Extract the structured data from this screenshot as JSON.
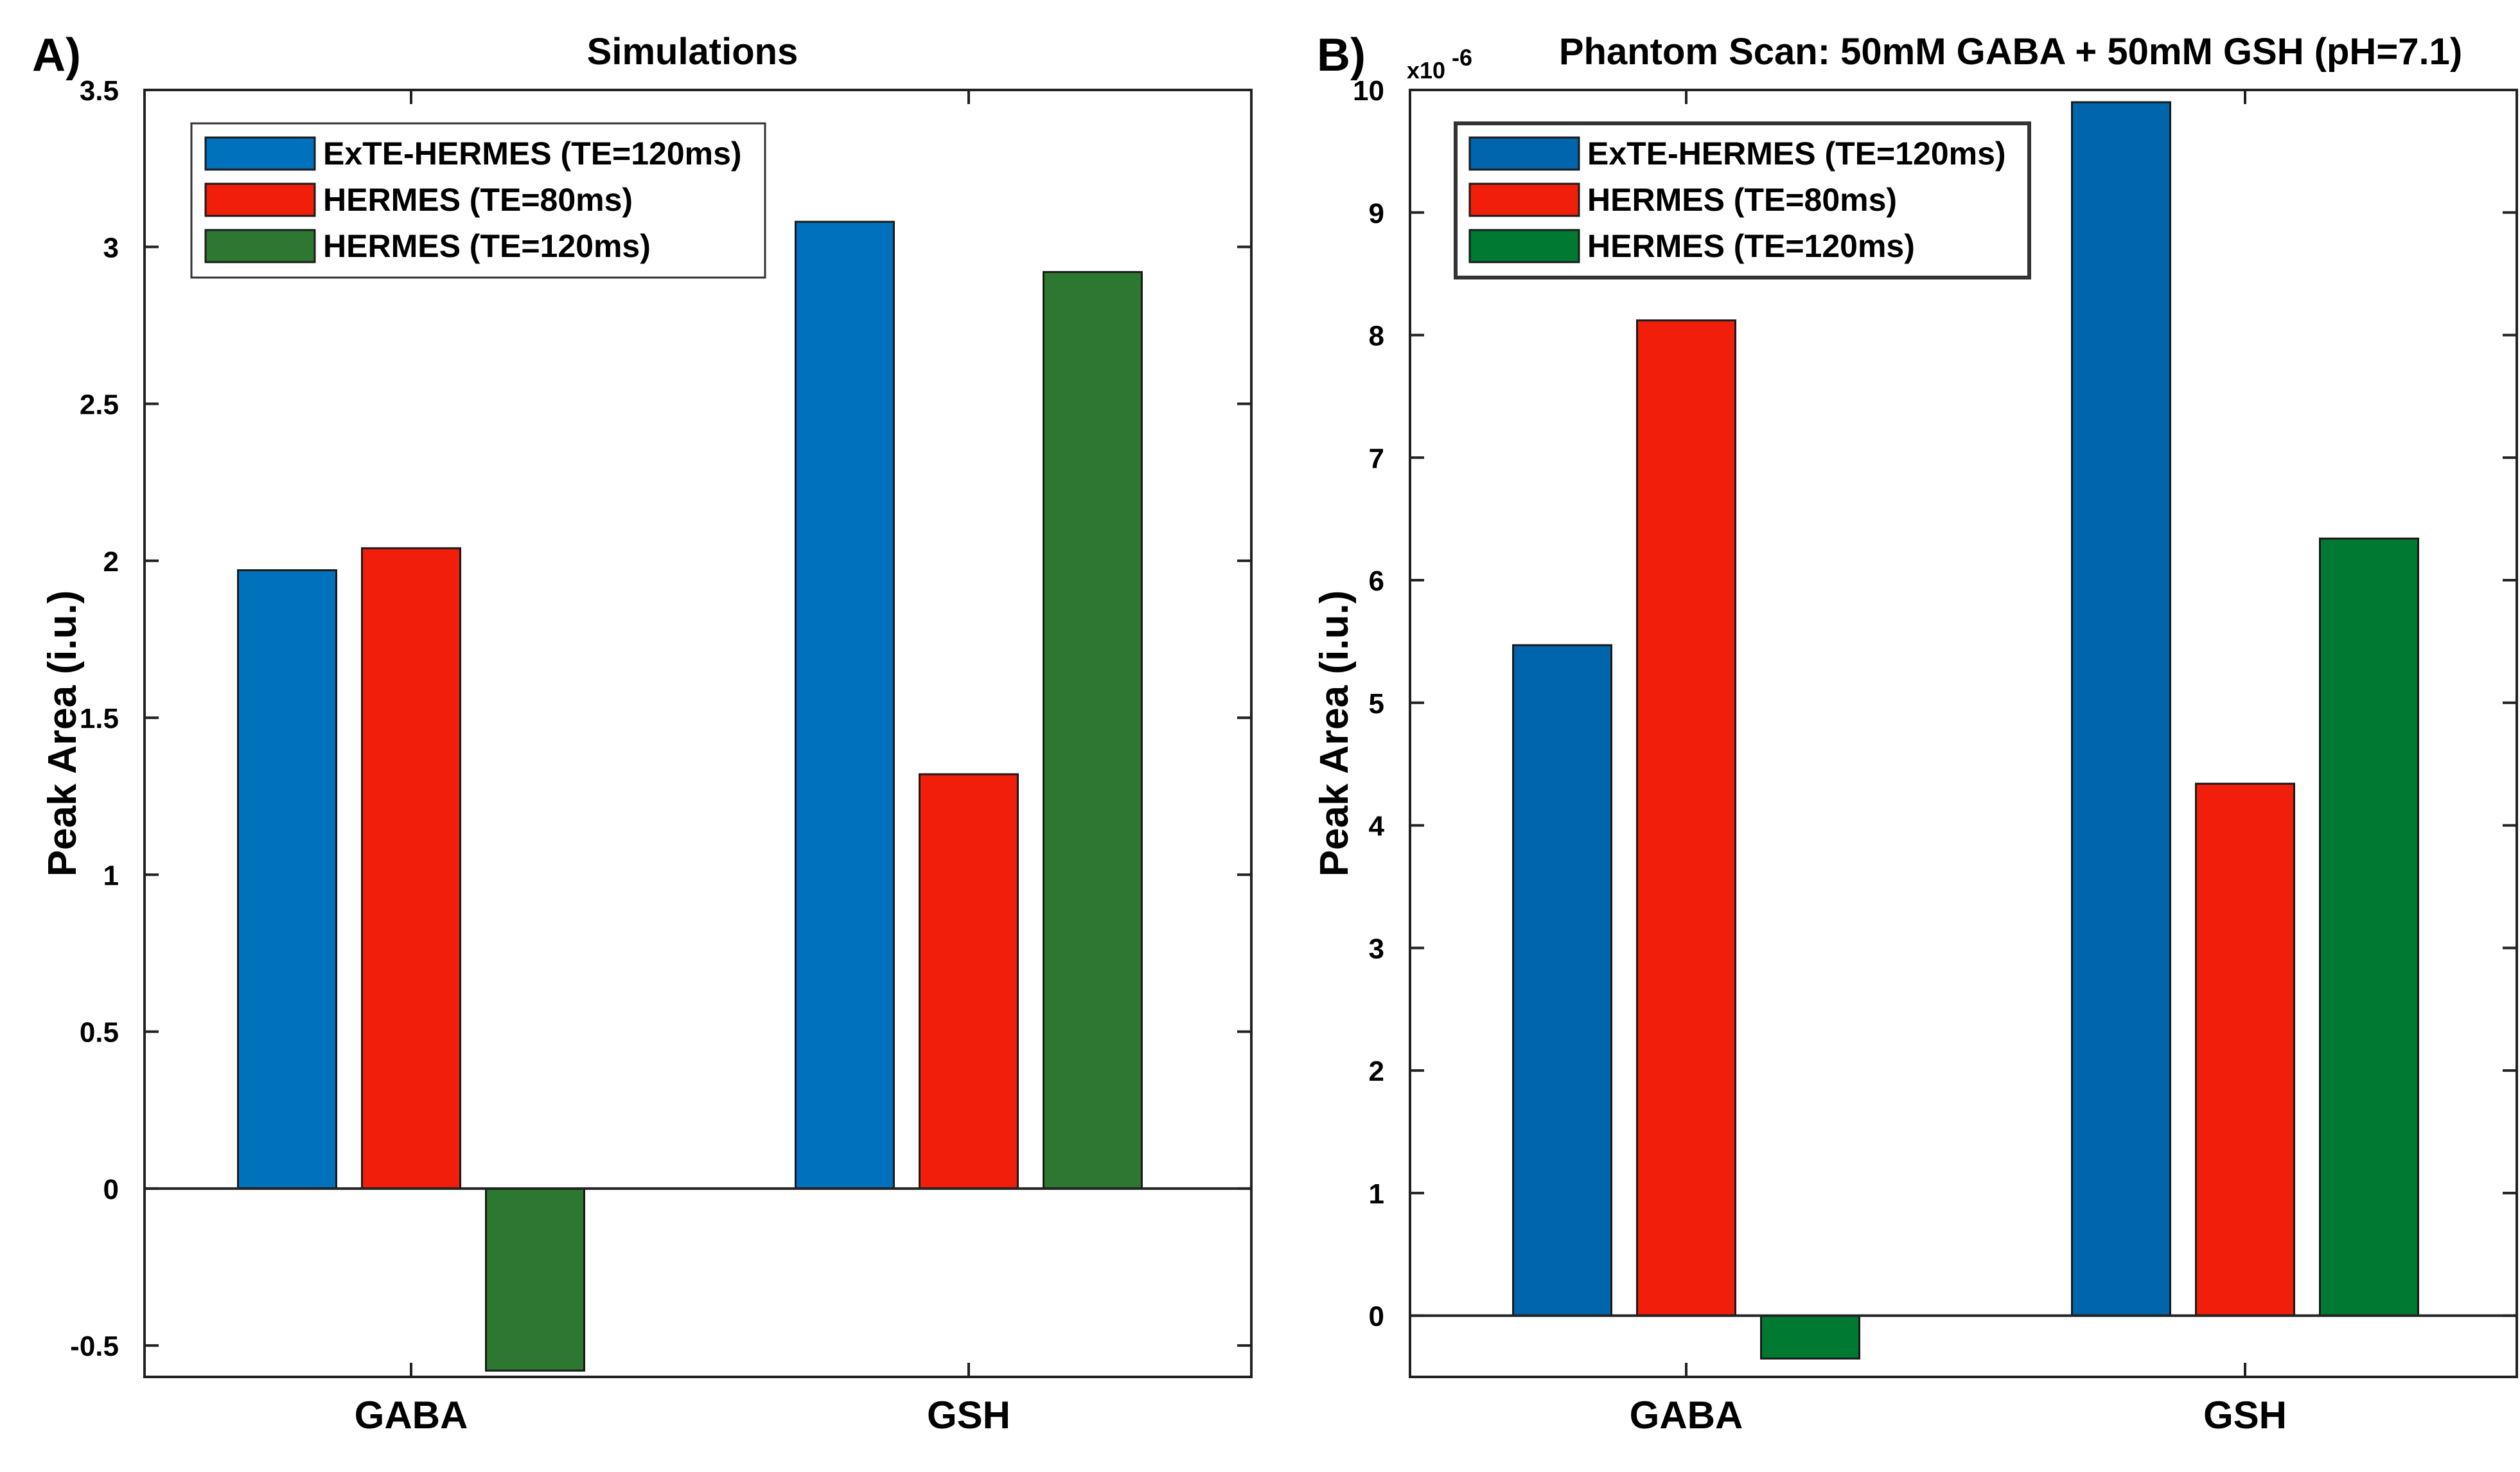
{
  "chart_data": [
    {
      "type": "bar",
      "panel_label": "A)",
      "title": "Simulations",
      "xlabel": "",
      "ylabel": "Peak Area (i.u.)",
      "categories": [
        "GABA",
        "GSH"
      ],
      "ylim": [
        -0.6,
        3.5
      ],
      "yticks": [
        "-0.5",
        "0",
        "0.5",
        "1",
        "1.5",
        "2",
        "2.5",
        "3",
        "3.5"
      ],
      "ytick_values": [
        -0.5,
        0,
        0.5,
        1,
        1.5,
        2,
        2.5,
        3,
        3.5
      ],
      "legend_position": "top-left",
      "grid": false,
      "series": [
        {
          "name": "ExTE-HERMES (TE=120ms)",
          "color": "#0072bd",
          "values": [
            1.97,
            3.08
          ]
        },
        {
          "name": "HERMES (TE=80ms)",
          "color": "#f01e0a",
          "values": [
            2.04,
            1.32
          ]
        },
        {
          "name": "HERMES (TE=120ms)",
          "color": "#2d7830",
          "values": [
            -0.58,
            2.92
          ]
        }
      ]
    },
    {
      "type": "bar",
      "panel_label": "B)",
      "title": "Phantom Scan: 50mM GABA + 50mM GSH (pH=7.1)",
      "xlabel": "",
      "ylabel": "Peak Area (i.u.)",
      "exponent_label": "x10",
      "exponent_power": "-6",
      "categories": [
        "GABA",
        "GSH"
      ],
      "ylim": [
        -0.5,
        10
      ],
      "yticks": [
        "0",
        "1",
        "2",
        "3",
        "4",
        "5",
        "6",
        "7",
        "8",
        "9",
        "10"
      ],
      "ytick_values": [
        0,
        1,
        2,
        3,
        4,
        5,
        6,
        7,
        8,
        9,
        10
      ],
      "legend_position": "top-left",
      "grid": false,
      "series": [
        {
          "name": "ExTE-HERMES (TE=120ms)",
          "color": "#0065ad",
          "values": [
            5.47,
            9.9
          ]
        },
        {
          "name": "HERMES (TE=80ms)",
          "color": "#f01e0a",
          "values": [
            8.12,
            4.34
          ]
        },
        {
          "name": "HERMES (TE=120ms)",
          "color": "#007a33",
          "values": [
            -0.35,
            6.34
          ]
        }
      ]
    }
  ]
}
